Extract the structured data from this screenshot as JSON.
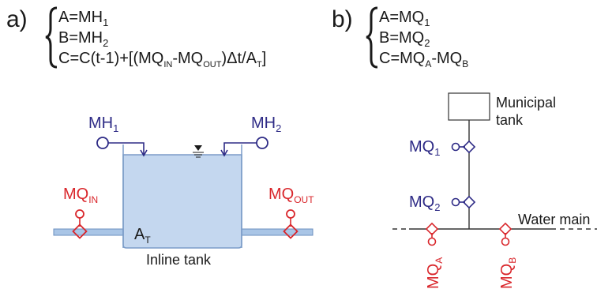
{
  "panel_a": {
    "label": "a)",
    "equations": {
      "a": {
        "main": "A=MH",
        "sub": "1"
      },
      "b": {
        "main": "B=MH",
        "sub": "2"
      },
      "c": {
        "p1": "C=C(t-1)+[(MQ",
        "s1": "IN",
        "p2": "-MQ",
        "s2": "OUT",
        "p3": ")Δt/A",
        "s3": "T",
        "p4": "]"
      }
    },
    "sensors": {
      "mh1": {
        "main": "MH",
        "sub": "1"
      },
      "mh2": {
        "main": "MH",
        "sub": "2"
      },
      "mq_in": {
        "main": "MQ",
        "sub": "IN"
      },
      "mq_out": {
        "main": "MQ",
        "sub": "OUT"
      }
    },
    "tank_area": {
      "main": "A",
      "sub": "T"
    },
    "tank_caption": "Inline tank"
  },
  "panel_b": {
    "label": "b)",
    "equations": {
      "a": {
        "main": "A=MQ",
        "sub": "1"
      },
      "b": {
        "main": "B=MQ",
        "sub": "2"
      },
      "c": {
        "p1": "C=MQ",
        "s1": "A",
        "p2": "-MQ",
        "s2": "B"
      }
    },
    "sensors": {
      "mq1": {
        "main": "MQ",
        "sub": "1"
      },
      "mq2": {
        "main": "MQ",
        "sub": "2"
      },
      "mqa": {
        "main": "MQ",
        "sub": "A"
      },
      "mqb": {
        "main": "MQ",
        "sub": "B"
      }
    },
    "municipal_tank_line1": "Municipal",
    "municipal_tank_line2": "tank",
    "water_main": "Water main"
  },
  "colors": {
    "blue_sensor": "#2e2b86",
    "red_sensor": "#d9262b",
    "tank_fill": "#c4d7ef",
    "pipe_fill": "#a9c5e6"
  }
}
